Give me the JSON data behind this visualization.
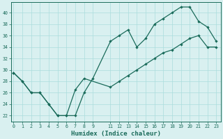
{
  "upper_x": [
    0,
    1,
    2,
    3,
    4,
    5,
    6,
    7,
    8,
    9,
    11,
    12,
    13,
    14,
    15,
    16,
    17,
    18,
    19,
    20,
    21,
    22,
    23
  ],
  "upper_y": [
    29.5,
    28,
    26,
    26,
    24,
    22,
    22,
    22,
    26,
    28.5,
    35,
    36,
    37,
    34,
    35.5,
    38,
    39,
    40,
    41,
    41,
    38.5,
    37.5,
    35
  ],
  "lower_x": [
    0,
    1,
    2,
    3,
    4,
    5,
    6,
    7,
    8,
    11,
    12,
    13,
    14,
    15,
    16,
    17,
    18,
    19,
    20,
    21,
    22,
    23
  ],
  "lower_y": [
    29.5,
    28,
    26,
    26,
    24,
    22,
    22,
    26.5,
    28.5,
    27,
    28,
    29,
    30,
    31,
    32,
    33,
    33.5,
    34.5,
    35.5,
    36,
    34,
    34
  ],
  "line_color": "#1a6b5a",
  "bg_color": "#d9f0f0",
  "grid_color": "#aadddd",
  "xlabel": "Humidex (Indice chaleur)",
  "xticks": [
    0,
    1,
    2,
    3,
    4,
    5,
    6,
    7,
    8,
    9,
    11,
    12,
    13,
    14,
    15,
    16,
    17,
    18,
    19,
    20,
    21,
    22,
    23
  ],
  "yticks": [
    22,
    24,
    26,
    28,
    30,
    32,
    34,
    36,
    38,
    40
  ],
  "xlim": [
    -0.3,
    23.5
  ],
  "ylim": [
    21.0,
    41.8
  ]
}
